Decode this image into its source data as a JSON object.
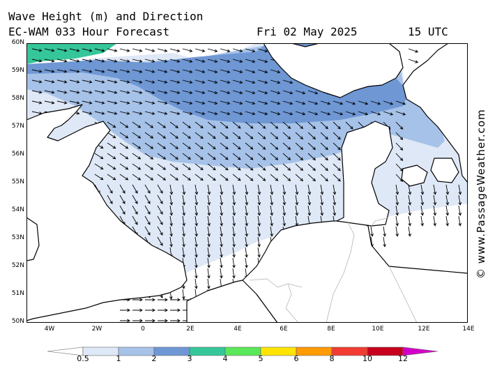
{
  "title": {
    "line1": "Wave Height (m) and Direction",
    "model": "EC-WAM 033 Hour Forecast",
    "date": "Fri 02 May 2025",
    "time": "15 UTC"
  },
  "watermark": "© www.PassageWeather.com",
  "map": {
    "lat_range": [
      50,
      60
    ],
    "lon_range": [
      -5,
      14
    ],
    "lat_labels": [
      "60N",
      "59N",
      "58N",
      "57N",
      "56N",
      "55N",
      "54N",
      "53N",
      "52N",
      "51N",
      "50N"
    ],
    "lon_labels": [
      "4W",
      "2W",
      "0",
      "2E",
      "4E",
      "6E",
      "8E",
      "10E",
      "12E",
      "14E"
    ],
    "colors": {
      "land": "#ffffff",
      "coast": "#000000",
      "border": "#b4b4b4",
      "arrow": "#000000"
    }
  },
  "legend": {
    "labels": [
      "0.5",
      "1",
      "2",
      "3",
      "4",
      "5",
      "6",
      "8",
      "10",
      "12"
    ],
    "colors": [
      "#dfe8f6",
      "#a6c2e8",
      "#6e97d4",
      "#35c799",
      "#5ae85a",
      "#ffe400",
      "#ff9a00",
      "#f23c32",
      "#c8001e",
      "#d200c8"
    ]
  }
}
